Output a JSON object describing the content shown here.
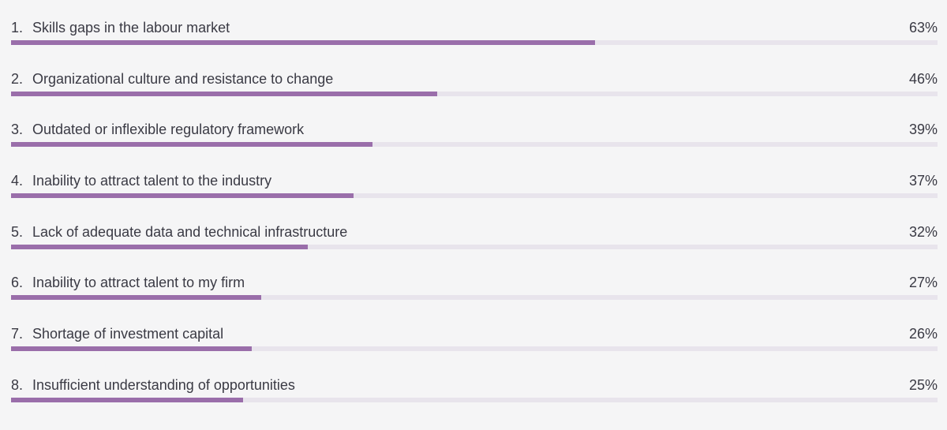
{
  "chart_data": {
    "type": "bar",
    "orientation": "horizontal",
    "xlim": [
      0,
      100
    ],
    "bar_color": "#9a6eaa",
    "track_color": "#e8e4ec",
    "bars": [
      {
        "rank": "1.",
        "label": "Skills gaps in the labour market",
        "value": 63,
        "value_label": "63%"
      },
      {
        "rank": "2.",
        "label": "Organizational culture and resistance to change",
        "value": 46,
        "value_label": "46%"
      },
      {
        "rank": "3.",
        "label": "Outdated or inflexible regulatory framework",
        "value": 39,
        "value_label": "39%"
      },
      {
        "rank": "4.",
        "label": "Inability to attract talent to the industry",
        "value": 37,
        "value_label": "37%"
      },
      {
        "rank": "5.",
        "label": "Lack of adequate data and technical infrastructure",
        "value": 32,
        "value_label": "32%"
      },
      {
        "rank": "6.",
        "label": "Inability to attract talent to my firm",
        "value": 27,
        "value_label": "27%"
      },
      {
        "rank": "7.",
        "label": "Shortage of investment capital",
        "value": 26,
        "value_label": "26%"
      },
      {
        "rank": "8.",
        "label": "Insufficient understanding of opportunities",
        "value": 25,
        "value_label": "25%"
      }
    ]
  }
}
